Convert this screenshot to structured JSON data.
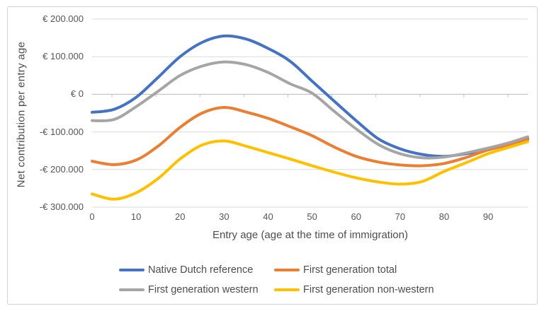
{
  "chart_data": {
    "type": "line",
    "title": "",
    "xlabel": "Entry age (age at the time of immigration)",
    "ylabel": "Net contribution per entry age",
    "grid": true,
    "legend_position": "bottom",
    "xlim": [
      0,
      99
    ],
    "ylim": [
      -300000,
      200000
    ],
    "x_tick_values": [
      0,
      10,
      20,
      30,
      40,
      50,
      60,
      70,
      80,
      90
    ],
    "x_tick_labels": [
      "0",
      "10",
      "20",
      "30",
      "40",
      "50",
      "60",
      "70",
      "80",
      "90"
    ],
    "y_tick_values": [
      200000,
      100000,
      0,
      -100000,
      -200000,
      -300000
    ],
    "y_tick_labels": [
      "€ 200.000",
      "€ 100.000",
      "€ 0",
      "-€ 100.000",
      "-€ 200.000",
      "-€ 300.000"
    ],
    "x": [
      0,
      5,
      10,
      15,
      20,
      25,
      30,
      35,
      40,
      45,
      50,
      55,
      60,
      65,
      70,
      75,
      80,
      85,
      90,
      95,
      99
    ],
    "series": [
      {
        "name": "Native Dutch reference",
        "color": "#4472C4",
        "values": [
          -48000,
          -40000,
          -8000,
          45000,
          100000,
          138000,
          155000,
          147000,
          122000,
          88000,
          35000,
          -18000,
          -70000,
          -118000,
          -145000,
          -160000,
          -165000,
          -158000,
          -147000,
          -132000,
          -118000
        ]
      },
      {
        "name": "First generation total",
        "color": "#ED7D31",
        "values": [
          -178000,
          -187000,
          -175000,
          -138000,
          -88000,
          -50000,
          -35000,
          -47000,
          -64000,
          -86000,
          -110000,
          -140000,
          -165000,
          -180000,
          -188000,
          -190000,
          -184000,
          -168000,
          -148000,
          -134000,
          -121000
        ]
      },
      {
        "name": "First generation western",
        "color": "#A5A5A5",
        "values": [
          -70000,
          -67000,
          -33000,
          8000,
          50000,
          75000,
          86000,
          79000,
          58000,
          28000,
          3000,
          -45000,
          -92000,
          -133000,
          -158000,
          -169000,
          -167000,
          -156000,
          -143000,
          -128000,
          -113000
        ]
      },
      {
        "name": "First generation non-western",
        "color": "#FFC000",
        "values": [
          -265000,
          -279000,
          -262000,
          -224000,
          -172000,
          -135000,
          -124000,
          -138000,
          -155000,
          -172000,
          -190000,
          -207000,
          -222000,
          -233000,
          -239000,
          -232000,
          -205000,
          -182000,
          -158000,
          -140000,
          -126000
        ]
      }
    ],
    "legend_rows": [
      [
        0,
        1
      ],
      [
        2,
        3
      ]
    ],
    "axis_color": "#BFBFBF",
    "gridline_color": "#D9D9D9"
  }
}
